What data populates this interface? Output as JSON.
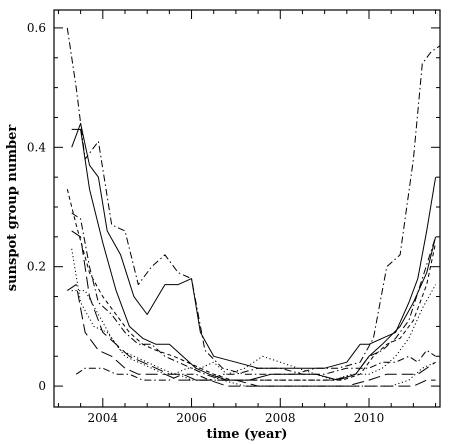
{
  "chart_data": {
    "type": "line",
    "xlabel": "time (year)",
    "ylabel": "sunspot group number",
    "xlim": [
      2002.9,
      2011.6
    ],
    "ylim": [
      -0.035,
      0.63
    ],
    "xticks": [
      2004,
      2006,
      2008,
      2010
    ],
    "xtick_labels": [
      "2004",
      "2006",
      "2008",
      "2010"
    ],
    "yticks": [
      0,
      0.2,
      0.4,
      0.6
    ],
    "ytick_labels": [
      "0",
      "0.2",
      "0.4",
      "0.6"
    ],
    "grid": false,
    "series": [
      {
        "style": "solid",
        "x": [
          2003.3,
          2003.5,
          2003.7,
          2003.9,
          2004.1,
          2004.4,
          2004.7,
          2005.0,
          2005.4,
          2005.7,
          2006.0,
          2006.2,
          2006.5,
          2007.0,
          2007.5,
          2008.0,
          2008.5,
          2009.0,
          2009.5,
          2009.8,
          2010.0,
          2010.3,
          2010.6,
          2010.9,
          2011.1,
          2011.3,
          2011.5
        ],
        "y": [
          0.4,
          0.44,
          0.37,
          0.35,
          0.26,
          0.22,
          0.15,
          0.12,
          0.17,
          0.17,
          0.18,
          0.09,
          0.05,
          0.04,
          0.03,
          0.03,
          0.03,
          0.03,
          0.04,
          0.07,
          0.07,
          0.08,
          0.09,
          0.14,
          0.18,
          0.26,
          0.35
        ]
      },
      {
        "style": "solid",
        "x": [
          2003.3,
          2003.5,
          2003.7,
          2004.0,
          2004.3,
          2004.6,
          2004.9,
          2005.2,
          2005.5,
          2005.8,
          2006.1,
          2006.4,
          2006.8,
          2007.3,
          2007.8,
          2008.3,
          2008.8,
          2009.3,
          2009.7,
          2010.0,
          2010.3,
          2010.7,
          2011.0,
          2011.3,
          2011.5
        ],
        "y": [
          0.43,
          0.43,
          0.33,
          0.24,
          0.16,
          0.1,
          0.08,
          0.07,
          0.07,
          0.05,
          0.03,
          0.02,
          0.01,
          0.01,
          0.02,
          0.02,
          0.02,
          0.01,
          0.02,
          0.05,
          0.07,
          0.1,
          0.14,
          0.19,
          0.25
        ]
      },
      {
        "style": "dashdot",
        "x": [
          2003.2,
          2003.4,
          2003.6,
          2003.9,
          2004.2,
          2004.5,
          2004.8,
          2005.1,
          2005.4,
          2005.7,
          2006.0,
          2006.3,
          2006.7,
          2007.2,
          2007.8,
          2008.3,
          2008.8,
          2009.3,
          2009.8,
          2010.1,
          2010.4,
          2010.7,
          2011.0,
          2011.2,
          2011.4,
          2011.6
        ],
        "y": [
          0.6,
          0.5,
          0.38,
          0.41,
          0.27,
          0.26,
          0.17,
          0.2,
          0.22,
          0.19,
          0.18,
          0.06,
          0.03,
          0.02,
          0.02,
          0.02,
          0.03,
          0.03,
          0.04,
          0.08,
          0.2,
          0.22,
          0.38,
          0.54,
          0.56,
          0.57
        ]
      },
      {
        "style": "dashdot",
        "x": [
          2003.3,
          2003.5,
          2003.7,
          2003.9,
          2004.2,
          2004.5,
          2004.8,
          2005.1,
          2005.4,
          2005.7,
          2006.0,
          2006.3,
          2006.7,
          2007.2,
          2007.7,
          2008.2,
          2008.7,
          2009.2,
          2009.7,
          2010.0,
          2010.3,
          2010.6,
          2010.9,
          2011.2,
          2011.5
        ],
        "y": [
          0.29,
          0.28,
          0.2,
          0.14,
          0.12,
          0.09,
          0.07,
          0.07,
          0.05,
          0.04,
          0.03,
          0.02,
          0.01,
          0.01,
          0.01,
          0.01,
          0.01,
          0.01,
          0.02,
          0.05,
          0.06,
          0.08,
          0.11,
          0.18,
          0.25
        ]
      },
      {
        "style": "shortdash",
        "x": [
          2003.2,
          2003.4,
          2003.7,
          2004.0,
          2004.3,
          2004.6,
          2004.9,
          2005.2,
          2005.6,
          2005.9,
          2006.2,
          2006.5,
          2006.9,
          2007.4,
          2007.9,
          2008.4,
          2008.9,
          2009.4,
          2009.8,
          2010.1,
          2010.4,
          2010.7,
          2011.0,
          2011.3,
          2011.5
        ],
        "y": [
          0.33,
          0.27,
          0.19,
          0.15,
          0.12,
          0.09,
          0.07,
          0.06,
          0.05,
          0.04,
          0.03,
          0.02,
          0.01,
          0.01,
          0.01,
          0.01,
          0.01,
          0.01,
          0.02,
          0.05,
          0.07,
          0.08,
          0.11,
          0.17,
          0.24
        ]
      },
      {
        "style": "dotted",
        "x": [
          2003.3,
          2003.5,
          2003.8,
          2004.1,
          2004.4,
          2004.7,
          2005.0,
          2005.3,
          2005.6,
          2005.9,
          2006.2,
          2006.5,
          2006.8,
          2007.2,
          2007.6,
          2008.0,
          2008.4,
          2008.8,
          2009.2,
          2009.6,
          2010.0,
          2010.3,
          2010.6,
          2010.9,
          2011.2,
          2011.5
        ],
        "y": [
          0.23,
          0.14,
          0.1,
          0.09,
          0.06,
          0.05,
          0.04,
          0.03,
          0.02,
          0.03,
          0.03,
          0.04,
          0.02,
          0.03,
          0.05,
          0.04,
          0.03,
          0.02,
          0.01,
          0.02,
          0.02,
          0.03,
          0.05,
          0.08,
          0.13,
          0.17
        ]
      },
      {
        "style": "dotted",
        "x": [
          2003.3,
          2003.6,
          2003.9,
          2004.2,
          2004.5,
          2004.8,
          2005.1,
          2005.4,
          2005.7,
          2006.0,
          2006.3,
          2006.7,
          2007.2,
          2007.7,
          2008.2,
          2008.7,
          2009.2,
          2009.7,
          2010.1,
          2010.5,
          2010.9,
          2011.2,
          2011.5
        ],
        "y": [
          0.16,
          0.16,
          0.12,
          0.08,
          0.05,
          0.04,
          0.03,
          0.02,
          0.02,
          0.01,
          0.01,
          0.01,
          0.0,
          0.0,
          0.0,
          0.0,
          0.0,
          0.0,
          0.0,
          0.0,
          0.01,
          0.03,
          0.04
        ]
      },
      {
        "style": "longdash",
        "x": [
          2003.2,
          2003.4,
          2003.6,
          2003.9,
          2004.2,
          2004.5,
          2004.8,
          2005.1,
          2005.4,
          2005.7,
          2006.0,
          2006.4,
          2006.8,
          2007.3,
          2007.8,
          2008.3,
          2008.8,
          2009.3,
          2009.8,
          2010.2,
          2010.6,
          2011.0,
          2011.3,
          2011.5
        ],
        "y": [
          0.16,
          0.17,
          0.09,
          0.06,
          0.05,
          0.03,
          0.02,
          0.02,
          0.02,
          0.01,
          0.01,
          0.01,
          0.0,
          0.0,
          0.0,
          0.0,
          0.0,
          0.0,
          0.0,
          0.0,
          0.0,
          0.0,
          0.01,
          0.01
        ]
      },
      {
        "style": "longdash",
        "x": [
          2003.3,
          2003.5,
          2003.7,
          2004.0,
          2004.3,
          2004.6,
          2004.9,
          2005.2,
          2005.5,
          2005.8,
          2006.1,
          2006.5,
          2007.0,
          2007.5,
          2008.0,
          2008.5,
          2009.0,
          2009.5,
          2010.0,
          2010.4,
          2010.8,
          2011.1,
          2011.3,
          2011.5
        ],
        "y": [
          0.26,
          0.25,
          0.15,
          0.09,
          0.07,
          0.05,
          0.04,
          0.03,
          0.02,
          0.02,
          0.01,
          0.01,
          0.01,
          0.0,
          0.0,
          0.0,
          0.0,
          0.0,
          0.01,
          0.02,
          0.02,
          0.02,
          0.03,
          0.04
        ]
      },
      {
        "style": "dashdot",
        "x": [
          2003.4,
          2003.6,
          2003.8,
          2004.0,
          2004.3,
          2004.6,
          2004.9,
          2005.2,
          2005.5,
          2005.8,
          2006.1,
          2006.4,
          2006.7,
          2007.0,
          2007.5,
          2008.0,
          2008.5,
          2009.0,
          2009.5,
          2010.0,
          2010.3,
          2010.6,
          2010.9,
          2011.1,
          2011.3,
          2011.5
        ],
        "y": [
          0.02,
          0.03,
          0.03,
          0.03,
          0.02,
          0.02,
          0.01,
          0.01,
          0.01,
          0.02,
          0.02,
          0.01,
          0.02,
          0.02,
          0.03,
          0.03,
          0.02,
          0.02,
          0.03,
          0.03,
          0.04,
          0.04,
          0.05,
          0.04,
          0.06,
          0.05
        ]
      }
    ]
  }
}
